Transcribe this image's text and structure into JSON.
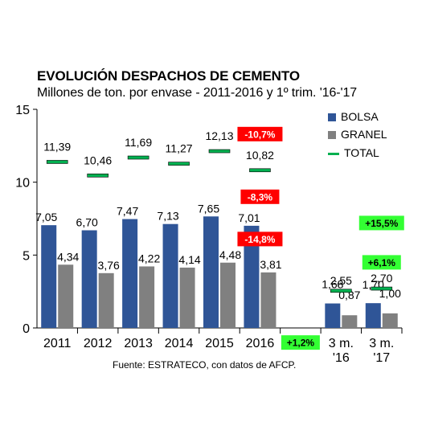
{
  "title": "EVOLUCIÓN DESPACHOS DE CEMENTO",
  "subtitle": "Millones de ton. por envase - 2011-2016 y 1º trim. '16-'17",
  "source": "Fuente: ESTRATECO, con datos de AFCP.",
  "colors": {
    "bolsa": "#2f5597",
    "granel": "#808080",
    "total": "#00b050",
    "neg_badge": "#ff0000",
    "pos_badge": "#33ff33"
  },
  "chart_data": {
    "type": "bar",
    "categories": [
      "2011",
      "2012",
      "2013",
      "2014",
      "2015",
      "2016",
      "",
      "3 m.\n'16",
      "3 m.\n'17"
    ],
    "series": [
      {
        "name": "BOLSA",
        "type": "bar",
        "values": [
          7.05,
          6.7,
          7.47,
          7.13,
          7.65,
          7.01,
          null,
          1.68,
          1.7
        ],
        "labels": [
          "7,05",
          "6,70",
          "7,47",
          "7,13",
          "7,65",
          "7,01",
          "",
          "1,68",
          "1,70"
        ]
      },
      {
        "name": "GRANEL",
        "type": "bar",
        "values": [
          4.34,
          3.76,
          4.22,
          4.14,
          4.48,
          3.81,
          null,
          0.87,
          1.0
        ],
        "labels": [
          "4,34",
          "3,76",
          "4,22",
          "4,14",
          "4,48",
          "3,81",
          "",
          "0,87",
          "1,00"
        ]
      },
      {
        "name": "TOTAL",
        "type": "marker",
        "values": [
          11.39,
          10.46,
          11.69,
          11.27,
          12.13,
          10.82,
          null,
          2.55,
          2.7
        ],
        "labels": [
          "11,39",
          "10,46",
          "11,69",
          "11,27",
          "12,13",
          "10,82",
          "",
          "2,55",
          "2,70"
        ]
      }
    ],
    "yticks": [
      "0",
      "5",
      "10",
      "15"
    ],
    "ylim": [
      0,
      15
    ],
    "legend_position": "top-right",
    "annotations": [
      {
        "text": "-10,7%",
        "kind": "negative",
        "category": "2016",
        "y": 13.3
      },
      {
        "text": "-8,3%",
        "kind": "negative",
        "category": "2016",
        "y": 9.0
      },
      {
        "text": "-14,8%",
        "kind": "negative",
        "category": "2016",
        "y": 6.1
      },
      {
        "text": "+1,2%",
        "kind": "positive",
        "category": "",
        "y": -1.0
      },
      {
        "text": "+15,5%",
        "kind": "positive",
        "category": "3 m.\n'17",
        "y": 7.2
      },
      {
        "text": "+6,1%",
        "kind": "positive",
        "category": "3 m.\n'17",
        "y": 4.5
      }
    ]
  }
}
